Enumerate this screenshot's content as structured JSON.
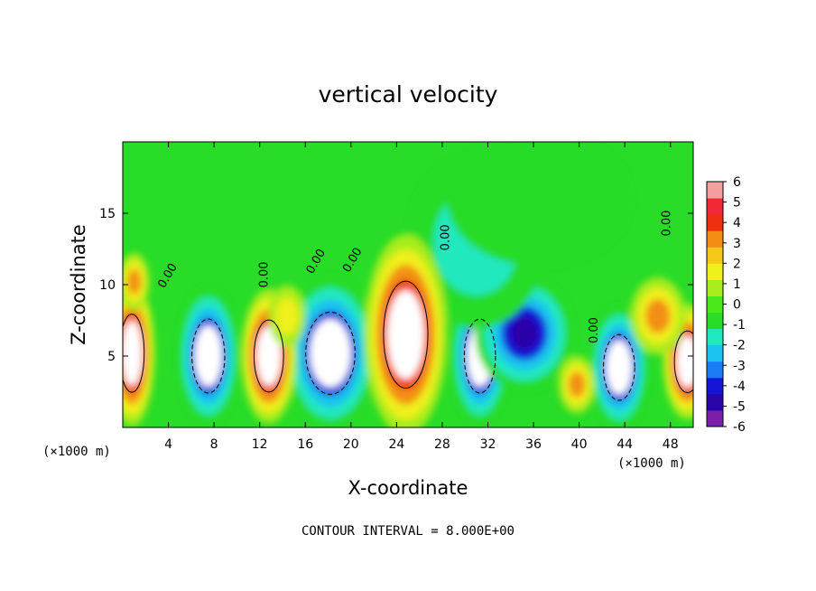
{
  "chart_data": {
    "type": "heatmap",
    "title": "vertical velocity",
    "xlabel": "X-coordinate",
    "ylabel": "Z-coordinate",
    "x_unit": "(×1000 m)",
    "xlim": [
      0,
      50
    ],
    "ylim": [
      0,
      20
    ],
    "x_ticks": [
      4,
      8,
      12,
      16,
      20,
      24,
      28,
      32,
      36,
      40,
      44,
      48
    ],
    "y_ticks": [
      5,
      10,
      15
    ],
    "note": "CONTOUR INTERVAL = 8.000E+00",
    "colorbar": {
      "ticks": [
        6,
        5,
        4,
        3,
        2,
        1,
        0,
        -1,
        -2,
        -3,
        -4,
        -5,
        -6
      ],
      "range": [
        -6,
        6
      ]
    },
    "contour_labels": [
      {
        "text": "0.00",
        "x": 4.2,
        "y": 10.5,
        "angle": -60
      },
      {
        "text": "0.00",
        "x": 12.7,
        "y": 10.7,
        "angle": -90
      },
      {
        "text": "0.00",
        "x": 17.2,
        "y": 11.5,
        "angle": -60
      },
      {
        "text": "0.00",
        "x": 20.4,
        "y": 11.6,
        "angle": -60
      },
      {
        "text": "0.00",
        "x": 28.6,
        "y": 13.3,
        "angle": -90
      },
      {
        "text": "0.00",
        "x": 41.6,
        "y": 6.8,
        "angle": -90
      },
      {
        "text": "0.00",
        "x": 48.0,
        "y": 14.3,
        "angle": -90
      }
    ],
    "updrafts": [
      {
        "x": 0.8,
        "z": 5.2,
        "rx": 1.5,
        "rz": 3.8,
        "peak": 6
      },
      {
        "x": 12.8,
        "z": 5.0,
        "rx": 1.8,
        "rz": 3.5,
        "peak": 6
      },
      {
        "x": 24.8,
        "z": 6.5,
        "rx": 2.7,
        "rz": 5.2,
        "peak": 6
      },
      {
        "x": 49.5,
        "z": 4.6,
        "rx": 1.6,
        "rz": 3.0,
        "peak": 6
      },
      {
        "x": 1.0,
        "z": 10.2,
        "rx": 1.0,
        "rz": 1.5,
        "peak": 3
      },
      {
        "x": 39.8,
        "z": 3.0,
        "rx": 1.2,
        "rz": 1.5,
        "peak": 3
      },
      {
        "x": 46.9,
        "z": 7.8,
        "rx": 1.8,
        "rz": 2.0,
        "peak": 3
      },
      {
        "x": 14.4,
        "z": 7.8,
        "rx": 1.2,
        "rz": 1.6,
        "peak": 2
      }
    ],
    "downdrafts": [
      {
        "x": 7.5,
        "z": 5.0,
        "rx": 2.0,
        "rz": 3.6,
        "peak": -6
      },
      {
        "x": 18.2,
        "z": 5.2,
        "rx": 3.0,
        "rz": 4.0,
        "peak": -6
      },
      {
        "x": 31.3,
        "z": 5.0,
        "rx": 1.9,
        "rz": 3.6,
        "peak": -6
      },
      {
        "x": 35.2,
        "z": 6.6,
        "rx": 3.2,
        "rz": 3.0,
        "peak": -5
      },
      {
        "x": 43.5,
        "z": 4.2,
        "rx": 1.9,
        "rz": 3.2,
        "peak": -6
      },
      {
        "x": 31.0,
        "z": 13.0,
        "rx": 4.5,
        "rz": 4.5,
        "peak": -1.5
      },
      {
        "x": 36.5,
        "z": 16.0,
        "rx": 6.0,
        "rz": 3.5,
        "peak": -1
      }
    ]
  },
  "colors": {
    "scale": [
      "#7b1fa8",
      "#2a05a8",
      "#1515d8",
      "#1c7cf5",
      "#1cc2f0",
      "#20e8c0",
      "#28dc28",
      "#4cea1c",
      "#a8ec1c",
      "#f0f01e",
      "#f5c81a",
      "#f38e15",
      "#ef3010",
      "#f02838",
      "#f2a0a0"
    ]
  }
}
